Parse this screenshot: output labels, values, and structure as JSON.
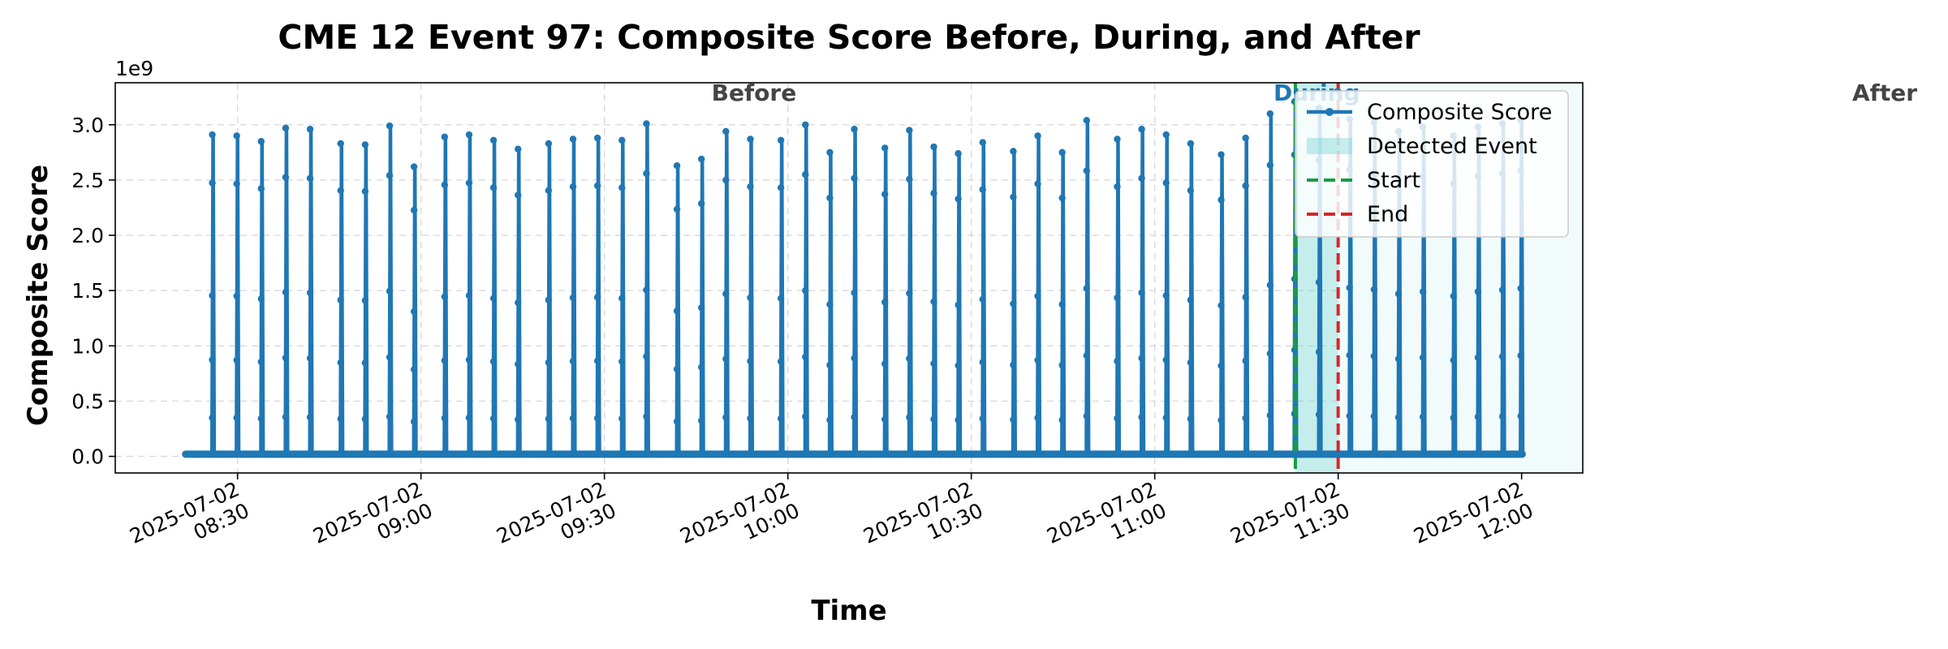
{
  "chart_data": {
    "type": "line",
    "title": "CME 12 Event 97: Composite Score Before, During, and After",
    "xlabel": "Time",
    "ylabel": "Composite Score",
    "y_scale_label": "1e9",
    "y_multiplier": 1000000000,
    "ylim": [
      -0.15,
      3.38
    ],
    "xlim": [
      "2025-07-02 08:10",
      "2025-07-02 12:10"
    ],
    "yticks": [
      0.0,
      0.5,
      1.0,
      1.5,
      2.0,
      2.5,
      3.0
    ],
    "ytick_labels": [
      "0.0",
      "0.5",
      "1.0",
      "1.5",
      "2.0",
      "2.5",
      "3.0"
    ],
    "xticks": [
      "2025-07-02 08:30",
      "2025-07-02 09:00",
      "2025-07-02 09:30",
      "2025-07-02 10:00",
      "2025-07-02 10:30",
      "2025-07-02 11:00",
      "2025-07-02 11:30",
      "2025-07-02 12:00"
    ],
    "xtick_labels": [
      [
        "2025-07-02",
        "08:30"
      ],
      [
        "2025-07-02",
        "09:00"
      ],
      [
        "2025-07-02",
        "09:30"
      ],
      [
        "2025-07-02",
        "10:00"
      ],
      [
        "2025-07-02",
        "10:30"
      ],
      [
        "2025-07-02",
        "11:00"
      ],
      [
        "2025-07-02",
        "11:30"
      ],
      [
        "2025-07-02",
        "12:00"
      ]
    ],
    "grid": true,
    "legend_position": "top-right",
    "series": [
      {
        "name": "Composite Score",
        "color": "#1f77b4",
        "baseline": 0.02,
        "peaks": [
          {
            "time": "2025-07-02 08:26",
            "value": 2.91
          },
          {
            "time": "2025-07-02 08:30",
            "value": 2.9
          },
          {
            "time": "2025-07-02 08:34",
            "value": 2.85
          },
          {
            "time": "2025-07-02 08:38",
            "value": 2.97
          },
          {
            "time": "2025-07-02 08:42",
            "value": 2.96
          },
          {
            "time": "2025-07-02 08:47",
            "value": 2.83
          },
          {
            "time": "2025-07-02 08:51",
            "value": 2.82
          },
          {
            "time": "2025-07-02 08:55",
            "value": 2.99
          },
          {
            "time": "2025-07-02 08:59",
            "value": 2.62
          },
          {
            "time": "2025-07-02 09:04",
            "value": 2.89
          },
          {
            "time": "2025-07-02 09:08",
            "value": 2.91
          },
          {
            "time": "2025-07-02 09:12",
            "value": 2.86
          },
          {
            "time": "2025-07-02 09:16",
            "value": 2.78
          },
          {
            "time": "2025-07-02 09:21",
            "value": 2.83
          },
          {
            "time": "2025-07-02 09:25",
            "value": 2.87
          },
          {
            "time": "2025-07-02 09:29",
            "value": 2.88
          },
          {
            "time": "2025-07-02 09:33",
            "value": 2.86
          },
          {
            "time": "2025-07-02 09:37",
            "value": 3.01
          },
          {
            "time": "2025-07-02 09:42",
            "value": 2.63
          },
          {
            "time": "2025-07-02 09:46",
            "value": 2.69
          },
          {
            "time": "2025-07-02 09:50",
            "value": 2.94
          },
          {
            "time": "2025-07-02 09:54",
            "value": 2.87
          },
          {
            "time": "2025-07-02 09:59",
            "value": 2.86
          },
          {
            "time": "2025-07-02 10:03",
            "value": 3.0
          },
          {
            "time": "2025-07-02 10:07",
            "value": 2.75
          },
          {
            "time": "2025-07-02 10:11",
            "value": 2.96
          },
          {
            "time": "2025-07-02 10:16",
            "value": 2.79
          },
          {
            "time": "2025-07-02 10:20",
            "value": 2.95
          },
          {
            "time": "2025-07-02 10:24",
            "value": 2.8
          },
          {
            "time": "2025-07-02 10:28",
            "value": 2.74
          },
          {
            "time": "2025-07-02 10:32",
            "value": 2.84
          },
          {
            "time": "2025-07-02 10:37",
            "value": 2.76
          },
          {
            "time": "2025-07-02 10:41",
            "value": 2.9
          },
          {
            "time": "2025-07-02 10:45",
            "value": 2.75
          },
          {
            "time": "2025-07-02 10:49",
            "value": 3.04
          },
          {
            "time": "2025-07-02 10:54",
            "value": 2.87
          },
          {
            "time": "2025-07-02 10:58",
            "value": 2.96
          },
          {
            "time": "2025-07-02 11:02",
            "value": 2.91
          },
          {
            "time": "2025-07-02 11:06",
            "value": 2.83
          },
          {
            "time": "2025-07-02 11:11",
            "value": 2.73
          },
          {
            "time": "2025-07-02 11:15",
            "value": 2.88
          },
          {
            "time": "2025-07-02 11:19",
            "value": 3.1
          },
          {
            "time": "2025-07-02 11:23",
            "value": 3.21
          },
          {
            "time": "2025-07-02 11:27",
            "value": 3.15
          },
          {
            "time": "2025-07-02 11:32",
            "value": 3.05
          },
          {
            "time": "2025-07-02 11:36",
            "value": 3.02
          },
          {
            "time": "2025-07-02 11:40",
            "value": 2.94
          },
          {
            "time": "2025-07-02 11:44",
            "value": 2.98
          },
          {
            "time": "2025-07-02 11:49",
            "value": 2.9
          },
          {
            "time": "2025-07-02 11:53",
            "value": 2.98
          },
          {
            "time": "2025-07-02 11:57",
            "value": 3.01
          },
          {
            "time": "2025-07-02 12:00",
            "value": 3.04
          }
        ]
      }
    ],
    "event": {
      "start": "2025-07-02 11:23",
      "end": "2025-07-02 11:30",
      "fill_color": "#7fd8d4",
      "start_color": "#1a9a48",
      "end_color": "#d62728"
    },
    "phase_labels": [
      {
        "text": "Before",
        "color": "#444444"
      },
      {
        "text": "During",
        "color": "#1f77b4"
      },
      {
        "text": "After",
        "color": "#444444"
      }
    ],
    "legend": [
      {
        "label": "Composite Score",
        "kind": "line-marker",
        "color": "#1f77b4"
      },
      {
        "label": "Detected Event",
        "kind": "patch",
        "color": "#7fd8d4"
      },
      {
        "label": "Start",
        "kind": "dashed",
        "color": "#1a9a48"
      },
      {
        "label": "End",
        "kind": "dashed",
        "color": "#d62728"
      }
    ]
  }
}
